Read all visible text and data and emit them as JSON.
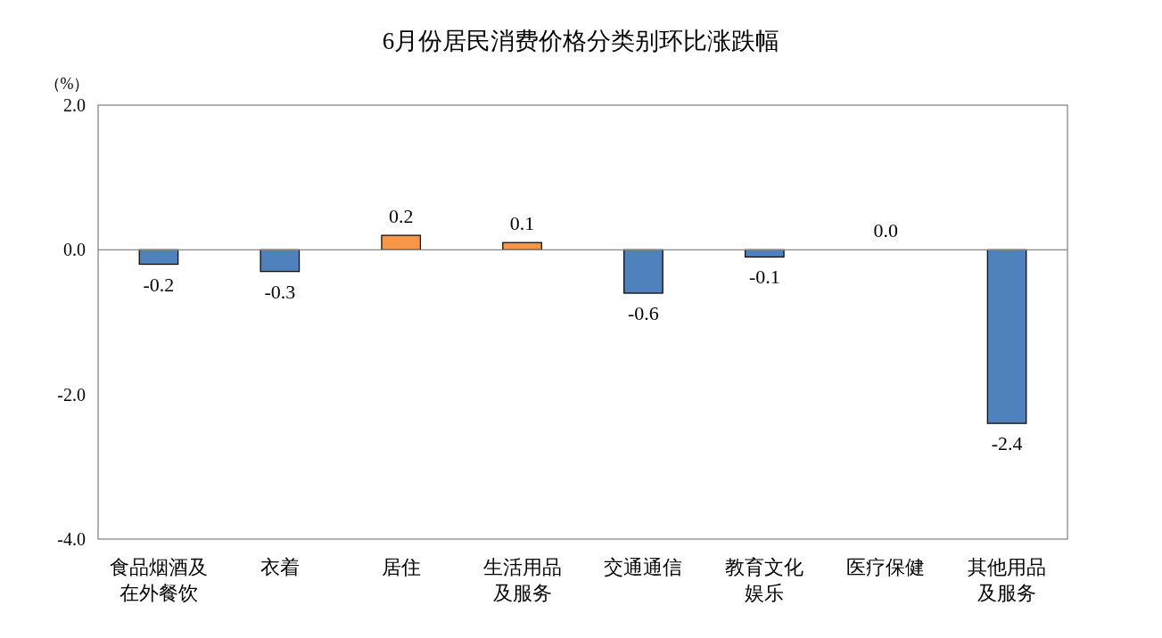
{
  "chart_data": {
    "type": "bar",
    "title": "6月份居民消费价格分类别环比涨跌幅",
    "ylabel": "（%）",
    "categories": [
      "食品烟酒及在外餐饮",
      "衣着",
      "居住",
      "生活用品及服务",
      "交通通信",
      "教育文化娱乐",
      "医疗保健",
      "其他用品及服务"
    ],
    "values": [
      -0.2,
      -0.3,
      0.2,
      0.1,
      -0.6,
      -0.1,
      0.0,
      -2.4
    ],
    "value_labels": [
      "-0.2",
      "-0.3",
      "0.2",
      "0.1",
      "-0.6",
      "-0.1",
      "0.0",
      "-2.4"
    ],
    "colors": [
      "#4f81bd",
      "#4f81bd",
      "#f79646",
      "#f79646",
      "#4f81bd",
      "#4f81bd",
      "#4f81bd",
      "#4f81bd"
    ],
    "ylim": [
      -4,
      2
    ],
    "yticks": [
      {
        "value": 2,
        "label": "2.0"
      },
      {
        "value": 0,
        "label": "0.0"
      },
      {
        "value": -2,
        "label": "-2.0"
      },
      {
        "value": -4,
        "label": "-4.0"
      }
    ],
    "ref_lines": [
      {
        "axis": "y",
        "value": 0,
        "color": "#888888"
      }
    ]
  }
}
